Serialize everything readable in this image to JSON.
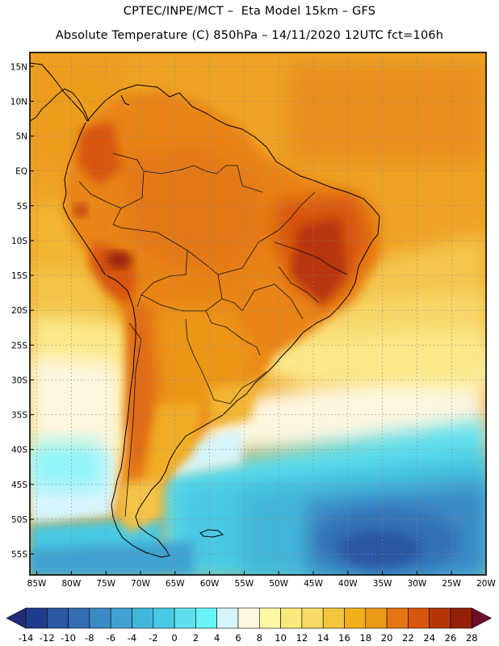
{
  "header": {
    "line1": "CPTEC/INPE/MCT –  Eta Model 15km – GFS",
    "line2": "Absolute Temperature (C) 850hPa – 14/11/2020 12UTC fct=106h"
  },
  "map": {
    "lat_range": [
      -58,
      17
    ],
    "lon_range": [
      -86,
      -20
    ],
    "lat_ticks": [
      "15N",
      "10N",
      "5N",
      "EQ",
      "5S",
      "10S",
      "15S",
      "20S",
      "25S",
      "30S",
      "35S",
      "40S",
      "45S",
      "50S",
      "55S"
    ],
    "lat_values": [
      15,
      10,
      5,
      0,
      -5,
      -10,
      -15,
      -20,
      -25,
      -30,
      -35,
      -40,
      -45,
      -50,
      -55
    ],
    "lon_ticks": [
      "85W",
      "80W",
      "75W",
      "70W",
      "65W",
      "60W",
      "55W",
      "50W",
      "45W",
      "40W",
      "35W",
      "30W",
      "25W",
      "20W"
    ],
    "lon_values": [
      -85,
      -80,
      -75,
      -70,
      -65,
      -60,
      -55,
      -50,
      -45,
      -40,
      -35,
      -30,
      -25,
      -20
    ],
    "gridlines": "dotted"
  },
  "colorbar": {
    "labels": [
      "-14",
      "-12",
      "-10",
      "-8",
      "-6",
      "-4",
      "-2",
      "0",
      "2",
      "4",
      "6",
      "8",
      "10",
      "12",
      "14",
      "16",
      "18",
      "20",
      "22",
      "24",
      "26",
      "28"
    ],
    "colors": [
      "#1e3c8c",
      "#2a56a2",
      "#336eb4",
      "#3a8bc6",
      "#40a2d2",
      "#42b6da",
      "#49c9e3",
      "#5edfee",
      "#66f4f8",
      "#d5f5fa",
      "#fdf6df",
      "#fef8a6",
      "#fbe97c",
      "#f8da64",
      "#f4c63c",
      "#f0b01c",
      "#ec9a15",
      "#e57514",
      "#d8550e",
      "#b8350a",
      "#922108"
    ],
    "under_color": "#222c7a",
    "over_color": "#6f0e27"
  }
}
